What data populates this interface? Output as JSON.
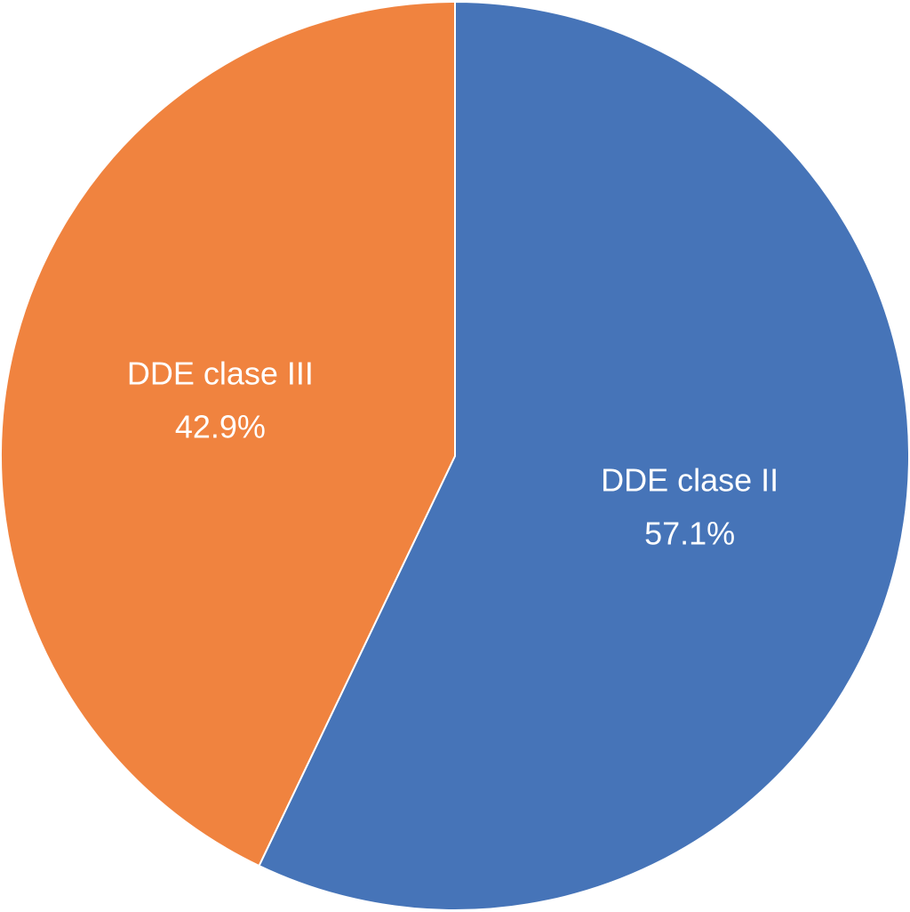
{
  "chart_data": {
    "type": "pie",
    "categories": [
      "DDE clase II",
      "DDE clase III"
    ],
    "values": [
      57.1,
      42.9
    ],
    "value_labels": [
      "57.1%",
      "42.9%"
    ],
    "colors": [
      "#4674b8",
      "#f0833f"
    ]
  }
}
